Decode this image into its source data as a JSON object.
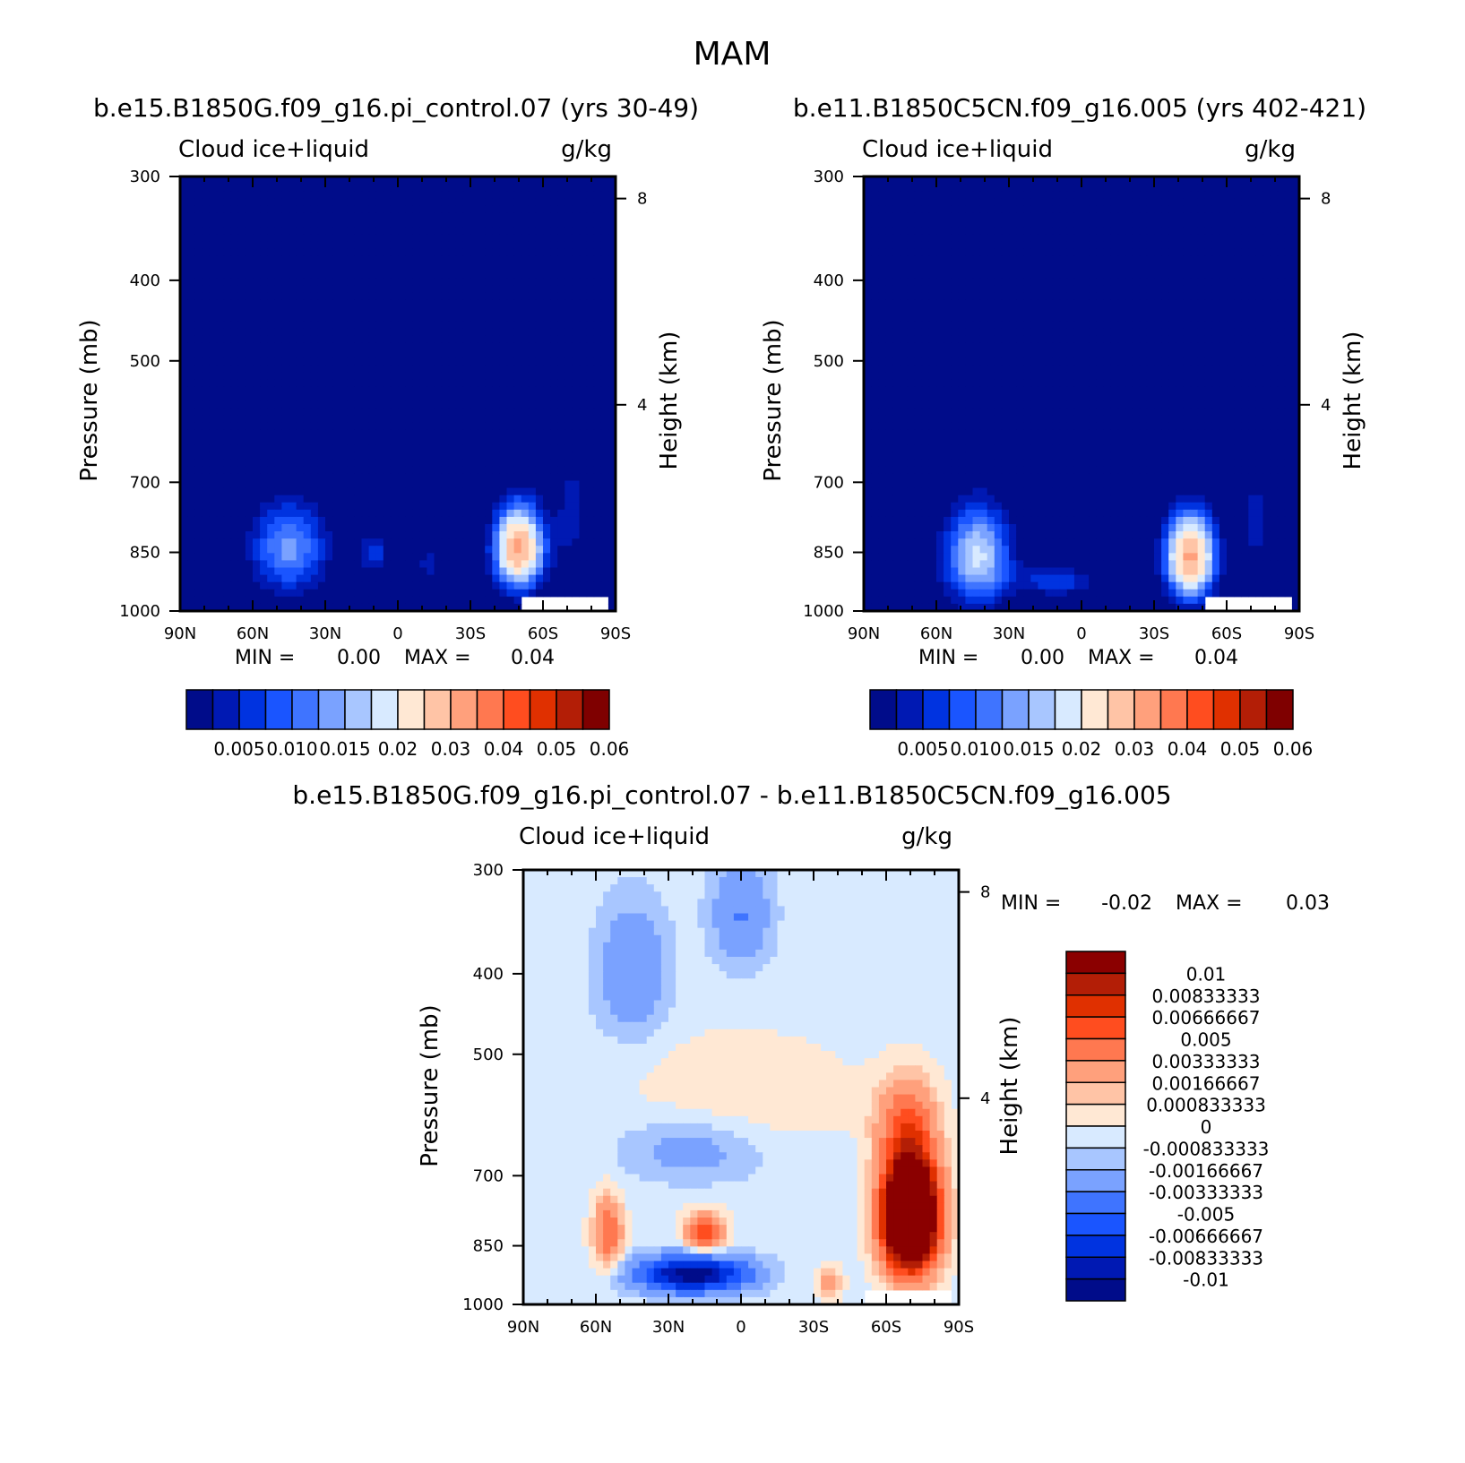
{
  "figure": {
    "title": "MAM"
  },
  "palettes": {
    "abs": [
      "#000c8a",
      "#0019b3",
      "#0033e0",
      "#1a55ff",
      "#3f74ff",
      "#7aa2ff",
      "#a8c6ff",
      "#d8eaff",
      "#ffe8d4",
      "#ffc4a6",
      "#ffa07c",
      "#ff7850",
      "#ff4d1f",
      "#e03000",
      "#b31e06",
      "#7f0000"
    ],
    "diff": [
      "#000c8a",
      "#0019b3",
      "#0033e0",
      "#1a55ff",
      "#3f74ff",
      "#7aa2ff",
      "#a8c6ff",
      "#d8eaff",
      "#ffe8d4",
      "#ffc4a6",
      "#ffa07c",
      "#ff7850",
      "#ff4d1f",
      "#e03000",
      "#b31e06",
      "#8b0000"
    ]
  },
  "chart_data": [
    {
      "type": "heatmap",
      "title": "b.e15.B1850G.f09_g16.pi_control.07 (yrs 30-49)",
      "variable": "Cloud ice+liquid",
      "units": "g/kg",
      "ylabel": "Pressure (mb)",
      "ylabel_right": "Height (km)",
      "x_ticks": [
        "90N",
        "60N",
        "30N",
        "0",
        "30S",
        "60S",
        "90S"
      ],
      "y_ticks": [
        "300",
        "400",
        "500",
        "700",
        "850",
        "1000"
      ],
      "y_ticks_right": [
        "8",
        "4"
      ],
      "ylim": [
        1000,
        300
      ],
      "min_label": "MIN =",
      "min_value": "0.00",
      "max_label": "MAX =",
      "max_value": "0.04",
      "colorbar_labels": [
        "0.005",
        "0.010",
        "0.015",
        "0.02",
        "0.03",
        "0.04",
        "0.05",
        "0.06"
      ],
      "blobs": [
        {
          "lat": 45,
          "p": 840,
          "amp": 0.016,
          "slat": 16,
          "sp": 110
        },
        {
          "lat": 10,
          "p": 850,
          "amp": 0.009,
          "slat": 7,
          "sp": 50
        },
        {
          "lat": -13,
          "p": 880,
          "amp": 0.006,
          "slat": 6,
          "sp": 55
        },
        {
          "lat": -50,
          "p": 840,
          "amp": 0.036,
          "slat": 10,
          "sp": 95
        },
        {
          "lat": -72,
          "p": 760,
          "amp": 0.006,
          "slat": 8,
          "sp": 150
        }
      ]
    },
    {
      "type": "heatmap",
      "title": "b.e11.B1850C5CN.f09_g16.005 (yrs 402-421)",
      "variable": "Cloud ice+liquid",
      "units": "g/kg",
      "ylabel": "Pressure (mb)",
      "ylabel_right": "Height (km)",
      "x_ticks": [
        "90N",
        "60N",
        "30N",
        "0",
        "30S",
        "60S",
        "90S"
      ],
      "y_ticks": [
        "300",
        "400",
        "500",
        "700",
        "850",
        "1000"
      ],
      "y_ticks_right": [
        "8",
        "4"
      ],
      "ylim": [
        1000,
        300
      ],
      "min_label": "MIN =",
      "min_value": "0.00",
      "max_label": "MAX =",
      "max_value": "0.04",
      "colorbar_labels": [
        "0.005",
        "0.010",
        "0.015",
        "0.02",
        "0.03",
        "0.04",
        "0.05",
        "0.06"
      ],
      "blobs": [
        {
          "lat": 43,
          "p": 860,
          "amp": 0.021,
          "slat": 14,
          "sp": 120
        },
        {
          "lat": 10,
          "p": 920,
          "amp": 0.01,
          "slat": 15,
          "sp": 40
        },
        {
          "lat": -45,
          "p": 860,
          "amp": 0.036,
          "slat": 10,
          "sp": 100
        },
        {
          "lat": -72,
          "p": 780,
          "amp": 0.006,
          "slat": 8,
          "sp": 150
        }
      ]
    },
    {
      "type": "heatmap",
      "title": "b.e15.B1850G.f09_g16.pi_control.07 - b.e11.B1850C5CN.f09_g16.005",
      "variable": "Cloud ice+liquid",
      "units": "g/kg",
      "ylabel": "Pressure (mb)",
      "ylabel_right": "Height (km)",
      "x_ticks": [
        "90N",
        "60N",
        "30N",
        "0",
        "30S",
        "60S",
        "90S"
      ],
      "y_ticks": [
        "300",
        "400",
        "500",
        "700",
        "850",
        "1000"
      ],
      "y_ticks_right": [
        "8",
        "4"
      ],
      "ylim": [
        1000,
        300
      ],
      "min_label": "MIN =",
      "min_value": "-0.02",
      "max_label": "MAX =",
      "max_value": "0.03",
      "colorbar_labels": [
        "0.01",
        "0.00833333",
        "0.00666667",
        "0.005",
        "0.00333333",
        "0.00166667",
        "0.000833333",
        "0",
        "-0.000833333",
        "-0.00166667",
        "-0.00333333",
        "-0.005",
        "-0.00666667",
        "-0.00833333",
        "-0.01"
      ],
      "blobs": [
        {
          "lat": 0,
          "p": 1000,
          "amp": -0.0004,
          "slat": 200,
          "sp": 99999
        },
        {
          "lat": 0,
          "p": 560,
          "amp": 0.0012,
          "slat": 45,
          "sp": 90
        },
        {
          "lat": 45,
          "p": 400,
          "amp": -0.003,
          "slat": 14,
          "sp": 70
        },
        {
          "lat": 0,
          "p": 340,
          "amp": -0.003,
          "slat": 12,
          "sp": 50
        },
        {
          "lat": 55,
          "p": 820,
          "amp": 0.005,
          "slat": 6,
          "sp": 80
        },
        {
          "lat": 15,
          "p": 820,
          "amp": 0.006,
          "slat": 8,
          "sp": 45
        },
        {
          "lat": 20,
          "p": 920,
          "amp": -0.011,
          "slat": 22,
          "sp": 45
        },
        {
          "lat": 20,
          "p": 650,
          "amp": -0.002,
          "slat": 30,
          "sp": 60
        },
        {
          "lat": -70,
          "p": 780,
          "amp": 0.025,
          "slat": 11,
          "sp": 120
        },
        {
          "lat": -68,
          "p": 600,
          "amp": 0.004,
          "slat": 12,
          "sp": 70
        },
        {
          "lat": -37,
          "p": 940,
          "amp": 0.003,
          "slat": 5,
          "sp": 40
        }
      ]
    }
  ]
}
